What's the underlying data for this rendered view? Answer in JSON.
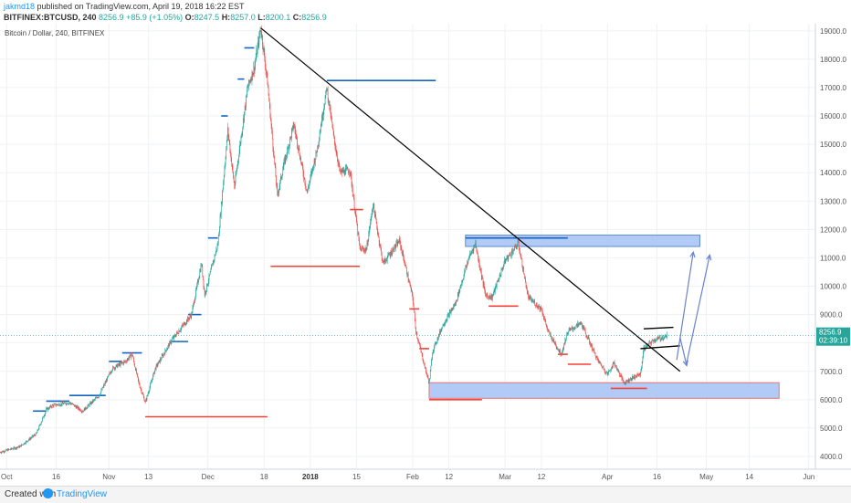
{
  "header": {
    "author": "jakmd18",
    "published": " published on TradingView.com, April 19, 2018 16:22 EST",
    "symbol": "BITFINEX:BTCUSD, 240",
    "last": "8256.9",
    "change": "+85.9 (+1.05%)",
    "o_label": "O:",
    "o_val": "8247.5",
    "h_label": "H:",
    "h_val": "8257.0",
    "l_label": "L:",
    "l_val": "8200.1",
    "c_label": "C:",
    "c_val": "8256.9"
  },
  "chart_data": {
    "type": "candlestick",
    "title": "Bitcoin / Dollar, 240, BITFINEX",
    "y_ticks": [
      4000,
      5000,
      6000,
      7000,
      8000,
      9000,
      10000,
      11000,
      12000,
      13000,
      14000,
      15000,
      16000,
      17000,
      18000,
      19000
    ],
    "y_tick_labels": [
      "4000.0",
      "5000.0",
      "6000.0",
      "7000.0",
      "8000.0",
      "9000.0",
      "10000.0",
      "11000.0",
      "12000.0",
      "13000.0",
      "14000.0",
      "15000.0",
      "16000.0",
      "17000.0",
      "18000.0",
      "19000.0"
    ],
    "ylim": [
      3550,
      19250
    ],
    "x_ticks": [
      {
        "label": "Oct",
        "date": "2017-10-01",
        "bold": false
      },
      {
        "label": "16",
        "date": "2017-10-16",
        "bold": false
      },
      {
        "label": "Nov",
        "date": "2017-11-01",
        "bold": false
      },
      {
        "label": "13",
        "date": "2017-11-13",
        "bold": false
      },
      {
        "label": "Dec",
        "date": "2017-12-01",
        "bold": false
      },
      {
        "label": "18",
        "date": "2017-12-18",
        "bold": false
      },
      {
        "label": "2018",
        "date": "2018-01-01",
        "bold": true
      },
      {
        "label": "15",
        "date": "2018-01-15",
        "bold": false
      },
      {
        "label": "Feb",
        "date": "2018-02-01",
        "bold": false
      },
      {
        "label": "12",
        "date": "2018-02-12",
        "bold": false
      },
      {
        "label": "Mar",
        "date": "2018-03-01",
        "bold": false
      },
      {
        "label": "12",
        "date": "2018-03-12",
        "bold": false
      },
      {
        "label": "Apr",
        "date": "2018-04-01",
        "bold": false
      },
      {
        "label": "16",
        "date": "2018-04-16",
        "bold": false
      },
      {
        "label": "May",
        "date": "2018-05-01",
        "bold": false
      },
      {
        "label": "14",
        "date": "2018-05-14",
        "bold": false
      },
      {
        "label": "Jun",
        "date": "2018-06-01",
        "bold": false
      }
    ],
    "xlim": [
      "2017-09-29",
      "2018-06-03"
    ],
    "last_price": {
      "value": 8256.9,
      "label": "8256.9",
      "countdown": "02:39:10"
    },
    "price_path": [
      [
        "2017-09-29",
        4150
      ],
      [
        "2017-10-05",
        4350
      ],
      [
        "2017-10-10",
        4800
      ],
      [
        "2017-10-13",
        5650
      ],
      [
        "2017-10-15",
        5800
      ],
      [
        "2017-10-20",
        5900
      ],
      [
        "2017-10-24",
        5600
      ],
      [
        "2017-10-29",
        6150
      ],
      [
        "2017-11-02",
        7100
      ],
      [
        "2017-11-06",
        7350
      ],
      [
        "2017-11-08",
        7600
      ],
      [
        "2017-11-10",
        6600
      ],
      [
        "2017-11-12",
        5900
      ],
      [
        "2017-11-15",
        7100
      ],
      [
        "2017-11-20",
        8100
      ],
      [
        "2017-11-26",
        9000
      ],
      [
        "2017-11-29",
        10800
      ],
      [
        "2017-11-30",
        9700
      ],
      [
        "2017-12-04",
        11500
      ],
      [
        "2017-12-07",
        15500
      ],
      [
        "2017-12-09",
        13500
      ],
      [
        "2017-12-13",
        17000
      ],
      [
        "2017-12-15",
        17700
      ],
      [
        "2017-12-17",
        19100
      ],
      [
        "2017-12-19",
        17200
      ],
      [
        "2017-12-22",
        13200
      ],
      [
        "2017-12-24",
        14300
      ],
      [
        "2017-12-27",
        15700
      ],
      [
        "2017-12-31",
        13300
      ],
      [
        "2018-01-03",
        14800
      ],
      [
        "2018-01-06",
        17000
      ],
      [
        "2018-01-08",
        15300
      ],
      [
        "2018-01-10",
        14000
      ],
      [
        "2018-01-13",
        14100
      ],
      [
        "2018-01-16",
        11300
      ],
      [
        "2018-01-18",
        11300
      ],
      [
        "2018-01-20",
        12900
      ],
      [
        "2018-01-23",
        10800
      ],
      [
        "2018-01-28",
        11600
      ],
      [
        "2018-02-01",
        9600
      ],
      [
        "2018-02-02",
        8400
      ],
      [
        "2018-02-05",
        7000
      ],
      [
        "2018-02-06",
        6600
      ],
      [
        "2018-02-07",
        7700
      ],
      [
        "2018-02-10",
        8600
      ],
      [
        "2018-02-14",
        9400
      ],
      [
        "2018-02-18",
        11000
      ],
      [
        "2018-02-20",
        11500
      ],
      [
        "2018-02-23",
        9700
      ],
      [
        "2018-02-25",
        9600
      ],
      [
        "2018-03-01",
        10900
      ],
      [
        "2018-03-05",
        11500
      ],
      [
        "2018-03-08",
        9600
      ],
      [
        "2018-03-12",
        9200
      ],
      [
        "2018-03-14",
        8400
      ],
      [
        "2018-03-18",
        7600
      ],
      [
        "2018-03-20",
        8400
      ],
      [
        "2018-03-24",
        8700
      ],
      [
        "2018-03-29",
        7400
      ],
      [
        "2018-04-01",
        6900
      ],
      [
        "2018-04-03",
        7300
      ],
      [
        "2018-04-06",
        6600
      ],
      [
        "2018-04-09",
        6800
      ],
      [
        "2018-04-11",
        6900
      ],
      [
        "2018-04-12",
        7800
      ],
      [
        "2018-04-15",
        8100
      ],
      [
        "2018-04-18",
        8200
      ],
      [
        "2018-04-19",
        8257
      ]
    ],
    "resistance_lines": [
      {
        "from": "2017-10-09",
        "to": "2017-10-13",
        "y": 5600
      },
      {
        "from": "2017-10-13",
        "to": "2017-10-20",
        "y": 5950
      },
      {
        "from": "2017-10-20",
        "to": "2017-10-31",
        "y": 6150
      },
      {
        "from": "2017-11-01",
        "to": "2017-11-05",
        "y": 7350
      },
      {
        "from": "2017-11-05",
        "to": "2017-11-11",
        "y": 7650
      },
      {
        "from": "2017-11-20",
        "to": "2017-11-25",
        "y": 8050
      },
      {
        "from": "2017-11-25",
        "to": "2017-11-29",
        "y": 9000
      },
      {
        "from": "2017-12-01",
        "to": "2017-12-04",
        "y": 11700
      },
      {
        "from": "2017-12-05",
        "to": "2017-12-07",
        "y": 16000
      },
      {
        "from": "2017-12-10",
        "to": "2017-12-12",
        "y": 17300
      },
      {
        "from": "2017-12-12",
        "to": "2017-12-15",
        "y": 18400
      },
      {
        "from": "2018-01-06",
        "to": "2018-02-08",
        "y": 17250
      },
      {
        "from": "2018-02-17",
        "to": "2018-03-20",
        "y": 11700
      }
    ],
    "support_lines": [
      {
        "from": "2017-11-12",
        "to": "2017-12-19",
        "y": 5400
      },
      {
        "from": "2017-12-20",
        "to": "2018-01-16",
        "y": 10700
      },
      {
        "from": "2018-01-13",
        "to": "2018-01-17",
        "y": 12700
      },
      {
        "from": "2018-01-31",
        "to": "2018-02-03",
        "y": 9200
      },
      {
        "from": "2018-02-03",
        "to": "2018-02-06",
        "y": 7800
      },
      {
        "from": "2018-02-06",
        "to": "2018-02-22",
        "y": 6000
      },
      {
        "from": "2018-02-24",
        "to": "2018-03-05",
        "y": 9300
      },
      {
        "from": "2018-03-17",
        "to": "2018-03-20",
        "y": 7600
      },
      {
        "from": "2018-03-20",
        "to": "2018-03-27",
        "y": 7250
      },
      {
        "from": "2018-04-02",
        "to": "2018-04-13",
        "y": 6400
      }
    ],
    "trendline": {
      "from": [
        "2017-12-17",
        19100
      ],
      "to": [
        "2018-04-23",
        7000
      ]
    },
    "demand_zone": {
      "from": "2018-02-06",
      "to": "2018-05-23",
      "y_low": 6050,
      "y_high": 6600
    },
    "supply_zone": {
      "from": "2018-02-17",
      "to": "2018-04-29",
      "y_low": 11400,
      "y_high": 11800
    },
    "flag_lines": [
      {
        "from": [
          "2018-04-12",
          8500
        ],
        "to": [
          "2018-04-21",
          8550
        ]
      },
      {
        "from": [
          "2018-04-11",
          7800
        ],
        "to": [
          "2018-04-23",
          7900
        ]
      }
    ],
    "projection_arrows": [
      {
        "from": [
          "2018-04-22",
          7400
        ],
        "to": [
          "2018-04-27",
          11200
        ]
      },
      {
        "from": [
          "2018-04-23",
          8200
        ],
        "to": [
          "2018-04-25",
          7200
        ]
      },
      {
        "from": [
          "2018-04-25",
          7300
        ],
        "to": [
          "2018-05-02",
          11100
        ]
      }
    ],
    "colors": {
      "up": "#26a69a",
      "down": "#ef5350",
      "resistance": "#1565c0",
      "support": "#f44336",
      "trendline": "#000000",
      "zone_fill": "#a4c2f4",
      "zone_border": "#e57373",
      "supply_border": "#5b8dd6",
      "arrow": "#6a83c9",
      "price_label": "#26a69a"
    }
  },
  "footer": {
    "created": "Created with",
    "brand": "TradingView"
  }
}
